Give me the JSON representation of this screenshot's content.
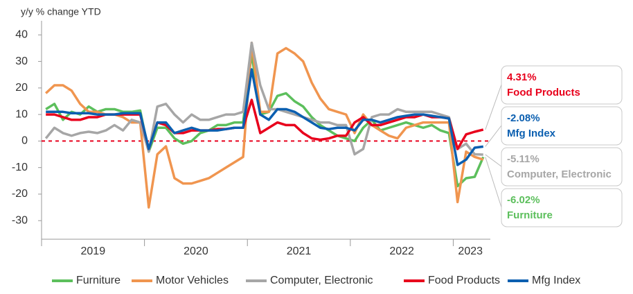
{
  "chart_data": {
    "type": "line",
    "title": "y/y % change YTD",
    "categories": [
      null,
      null,
      null,
      null,
      null,
      null,
      null,
      null,
      null,
      null,
      null,
      null,
      null,
      null,
      null,
      null,
      null,
      null,
      null,
      null,
      null,
      null,
      null,
      null,
      null,
      null,
      null,
      null,
      null,
      null,
      null,
      null,
      null,
      null,
      null,
      null,
      null,
      null,
      null,
      null,
      null,
      null,
      null,
      null,
      null,
      null,
      null,
      null,
      null,
      null,
      null,
      null
    ],
    "year_labels": [
      "2019",
      "2020",
      "2021",
      "2022",
      "2023"
    ],
    "ylim": [
      -37,
      44
    ],
    "yticks": [
      -30,
      -20,
      -10,
      0,
      10,
      20,
      30,
      40
    ],
    "zero_line": true,
    "legend": "bottom",
    "series": [
      {
        "name": "Furniture",
        "color": "#5cbf5c",
        "end_label": "-6.02%",
        "values": [
          12,
          14,
          8,
          11,
          10,
          13,
          11,
          12,
          12,
          11,
          11,
          11.5,
          -4,
          5,
          5,
          1,
          -1,
          0,
          3,
          4,
          6,
          6,
          7,
          7,
          33,
          10,
          11,
          17,
          18,
          15,
          13,
          9,
          6,
          4,
          2,
          1,
          0,
          5,
          8,
          4,
          5,
          6,
          7,
          6,
          5,
          6,
          4,
          3,
          -17,
          -14,
          -13.5,
          -6.02
        ]
      },
      {
        "name": "Motor Vehicles",
        "color": "#f0954f",
        "values": [
          18,
          21,
          21,
          19,
          14,
          11,
          11,
          10,
          10,
          9,
          7,
          7,
          -25,
          -5,
          -2,
          -14,
          -16,
          -16,
          -15,
          -14,
          -12,
          -10,
          -8,
          -6,
          37,
          11,
          11,
          33,
          35,
          33,
          30,
          22,
          16,
          12,
          11,
          10,
          3,
          10,
          6,
          4,
          2,
          1,
          5,
          6,
          7,
          7,
          7,
          7,
          -23,
          -4,
          -6,
          -7
        ]
      },
      {
        "name": "Computer, Electronic",
        "color": "#a6a6a6",
        "end_label": "-5.11%",
        "values": [
          1,
          5,
          3,
          2,
          3,
          3.5,
          3,
          4,
          6,
          4,
          8,
          7,
          -4,
          13,
          14,
          10,
          7,
          10,
          8,
          8,
          9,
          10,
          10,
          11,
          37,
          21,
          12,
          12,
          11,
          10,
          9,
          8,
          7,
          7,
          6,
          6,
          -5,
          -3,
          9,
          10,
          10,
          12,
          11,
          11,
          11,
          11,
          10,
          9,
          -3,
          -1,
          -5,
          -5.11
        ]
      },
      {
        "name": "Food Products",
        "color": "#e8001c",
        "end_label": "4.31%",
        "values": [
          10,
          10,
          9,
          8,
          8,
          9,
          9,
          10,
          10,
          10,
          10,
          10,
          -3,
          7,
          6,
          3,
          3,
          4,
          4,
          4,
          4.5,
          4.5,
          5,
          5,
          15.5,
          3,
          5,
          7,
          6,
          6,
          3,
          1,
          0.5,
          1,
          2,
          2,
          7,
          9,
          6,
          6,
          7,
          8,
          9,
          9,
          10,
          9,
          9,
          8.5,
          -3,
          2.5,
          3.5,
          4.31
        ]
      },
      {
        "name": "Mfg Index",
        "color": "#0b5fb0",
        "end_label": "-2.08%",
        "values": [
          11,
          11,
          11,
          10.5,
          10.5,
          10.5,
          10,
          10,
          10,
          10.5,
          10.5,
          10.5,
          -3,
          7,
          7,
          3,
          4,
          5,
          4,
          4,
          4,
          4.5,
          5,
          5,
          27,
          10,
          8,
          12,
          12,
          11,
          9,
          7,
          5,
          4.5,
          5,
          5,
          4,
          8,
          8,
          7,
          8,
          9,
          9.5,
          10,
          10,
          9.5,
          9,
          8.5,
          -9,
          -7,
          -2.5,
          -2.08
        ]
      }
    ]
  }
}
